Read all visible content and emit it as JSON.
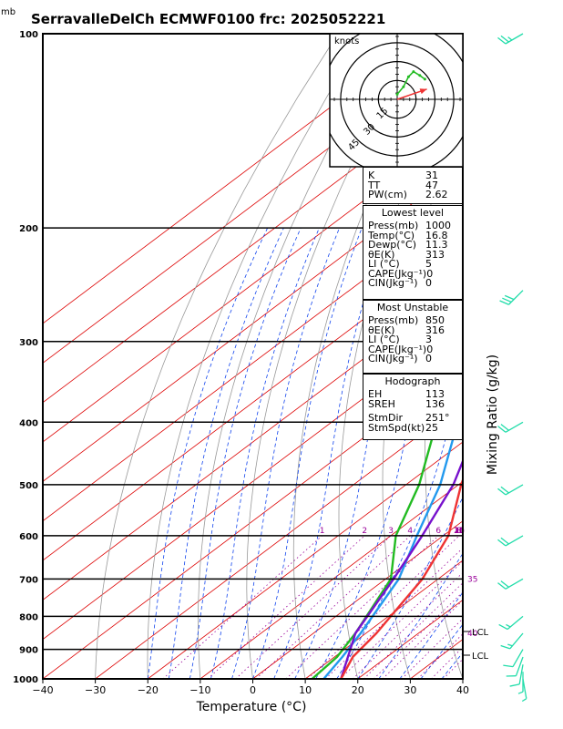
{
  "title": "SerravalleDelCh ECMWF0100  frc: 2025052221",
  "pressure_unit": "mb",
  "xlabel": "Temperature (°C)",
  "ylabel_right": "Mixing Ratio (g/kg)",
  "hodograph": {
    "unit_label": "knots",
    "ring_labels": [
      "15",
      "30",
      "45"
    ]
  },
  "indices": {
    "top": [
      {
        "label": "K",
        "value": "31"
      },
      {
        "label": "TT",
        "value": "47"
      },
      {
        "label": "PW(cm)",
        "value": "2.62"
      }
    ],
    "lowest_level": {
      "header": "Lowest level",
      "rows": [
        {
          "label": "Press(mb)",
          "value": "1000"
        },
        {
          "label": "Temp(°C)",
          "value": "16.8"
        },
        {
          "label": "Dewp(°C)",
          "value": "11.3"
        },
        {
          "label": "θE(K)",
          "value": "313"
        },
        {
          "label": "LI (°C)",
          "value": "5"
        },
        {
          "label": "CAPE(Jkg⁻¹)",
          "value": "0"
        },
        {
          "label": "CIN(Jkg⁻¹)",
          "value": "0"
        }
      ]
    },
    "most_unstable": {
      "header": "Most Unstable",
      "rows": [
        {
          "label": "Press(mb)",
          "value": "850"
        },
        {
          "label": "θE(K)",
          "value": "316"
        },
        {
          "label": "LI (°C)",
          "value": "3"
        },
        {
          "label": "CAPE(Jkg⁻¹)",
          "value": "0"
        },
        {
          "label": "CIN(Jkg⁻¹)",
          "value": "0"
        }
      ]
    },
    "hodograph_box": {
      "header": "Hodograph",
      "rows": [
        {
          "label": "EH",
          "value": "113"
        },
        {
          "label": "SREH",
          "value": "136"
        },
        {
          "label": "StmDir",
          "value": "251°"
        },
        {
          "label": "StmSpd(kt)",
          "value": "25"
        }
      ]
    }
  },
  "lcl_labels": [
    "LCL",
    "LCL"
  ],
  "colors": {
    "temperature": "#ee3333",
    "dewpoint": "#22bb22",
    "parcel": "#7711cc",
    "wetbulb": "#2299ee",
    "isotherm": "#dd0000",
    "dry_adiabat": "#999999",
    "mixing_ratio": "#990099",
    "moist_adiabat": "#1144ee",
    "barb": "#22ddaa"
  },
  "chart_data": {
    "type": "line",
    "diagram": "skew-T log-P",
    "xlim": [
      -40,
      40
    ],
    "ylim_pressure": [
      1000,
      100
    ],
    "x_ticks": [
      -40,
      -30,
      -20,
      -10,
      0,
      10,
      20,
      30,
      40
    ],
    "pressure_ticks": [
      100,
      200,
      300,
      400,
      500,
      600,
      700,
      800,
      900,
      1000
    ],
    "mixing_ratio_labels": [
      "1",
      "2",
      "3",
      "4",
      "6",
      "8",
      "10",
      "12",
      "14",
      "16",
      "18",
      "20",
      "25",
      "30",
      "35",
      "40"
    ],
    "series": [
      {
        "key": "temperature",
        "points": [
          {
            "p": 1000,
            "t": 16.8
          },
          {
            "p": 925,
            "t": 13.5
          },
          {
            "p": 850,
            "t": 12.0
          },
          {
            "p": 700,
            "t": 7.0
          },
          {
            "p": 600,
            "t": 1.0
          },
          {
            "p": 500,
            "t": -9.5
          },
          {
            "p": 400,
            "t": -21.0
          },
          {
            "p": 300,
            "t": -38.5
          },
          {
            "p": 250,
            "t": -49.0
          },
          {
            "p": 200,
            "t": -51.0
          },
          {
            "p": 150,
            "t": -53.0
          },
          {
            "p": 100,
            "t": -59.0
          }
        ]
      },
      {
        "key": "dewpoint",
        "points": [
          {
            "p": 1000,
            "t": 11.3
          },
          {
            "p": 925,
            "t": 10.5
          },
          {
            "p": 850,
            "t": 8.0
          },
          {
            "p": 700,
            "t": 1.0
          },
          {
            "p": 600,
            "t": -9.0
          },
          {
            "p": 500,
            "t": -17.5
          },
          {
            "p": 400,
            "t": -30.0
          },
          {
            "p": 300,
            "t": -46.0
          },
          {
            "p": 250,
            "t": -57.0
          },
          {
            "p": 200,
            "t": -72.0
          },
          {
            "p": 150,
            "t": -85.0
          },
          {
            "p": 100,
            "t": -99.0
          }
        ]
      },
      {
        "key": "wetbulb",
        "points": [
          {
            "p": 1000,
            "t": 13.5
          },
          {
            "p": 925,
            "t": 11.5
          },
          {
            "p": 850,
            "t": 9.0
          },
          {
            "p": 700,
            "t": 2.5
          },
          {
            "p": 600,
            "t": -5.0
          },
          {
            "p": 500,
            "t": -13.5
          },
          {
            "p": 400,
            "t": -26.0
          },
          {
            "p": 300,
            "t": -43.0
          },
          {
            "p": 200,
            "t": -62.0
          },
          {
            "p": 150,
            "t": -74.0
          },
          {
            "p": 100,
            "t": -87.0
          }
        ]
      },
      {
        "key": "parcel",
        "points": [
          {
            "p": 1000,
            "t": 16.8
          },
          {
            "p": 850,
            "t": 8.0
          },
          {
            "p": 700,
            "t": 1.5
          },
          {
            "p": 600,
            "t": -4.0
          },
          {
            "p": 500,
            "t": -11.0
          },
          {
            "p": 400,
            "t": -22.0
          },
          {
            "p": 300,
            "t": -38.0
          },
          {
            "p": 200,
            "t": -58.0
          },
          {
            "p": 150,
            "t": -70.0
          },
          {
            "p": 100,
            "t": -83.0
          }
        ]
      }
    ],
    "hodograph_points": [
      {
        "u": 0,
        "v": 4
      },
      {
        "u": 5,
        "v": 10
      },
      {
        "u": 9,
        "v": 18
      },
      {
        "u": 13,
        "v": 22
      },
      {
        "u": 18,
        "v": 19
      },
      {
        "u": 22,
        "v": 16
      }
    ],
    "storm_motion": {
      "direction_deg": 251,
      "speed_kt": 25
    },
    "wind_barbs": [
      {
        "p": 100,
        "dir": 240,
        "kt": 25
      },
      {
        "p": 250,
        "dir": 225,
        "kt": 30
      },
      {
        "p": 400,
        "dir": 240,
        "kt": 20
      },
      {
        "p": 500,
        "dir": 240,
        "kt": 20
      },
      {
        "p": 600,
        "dir": 240,
        "kt": 20
      },
      {
        "p": 700,
        "dir": 240,
        "kt": 20
      },
      {
        "p": 800,
        "dir": 230,
        "kt": 15
      },
      {
        "p": 850,
        "dir": 220,
        "kt": 15
      },
      {
        "p": 900,
        "dir": 210,
        "kt": 10
      },
      {
        "p": 925,
        "dir": 200,
        "kt": 10
      },
      {
        "p": 950,
        "dir": 190,
        "kt": 10
      },
      {
        "p": 975,
        "dir": 180,
        "kt": 5
      },
      {
        "p": 1000,
        "dir": 170,
        "kt": 5
      }
    ]
  }
}
